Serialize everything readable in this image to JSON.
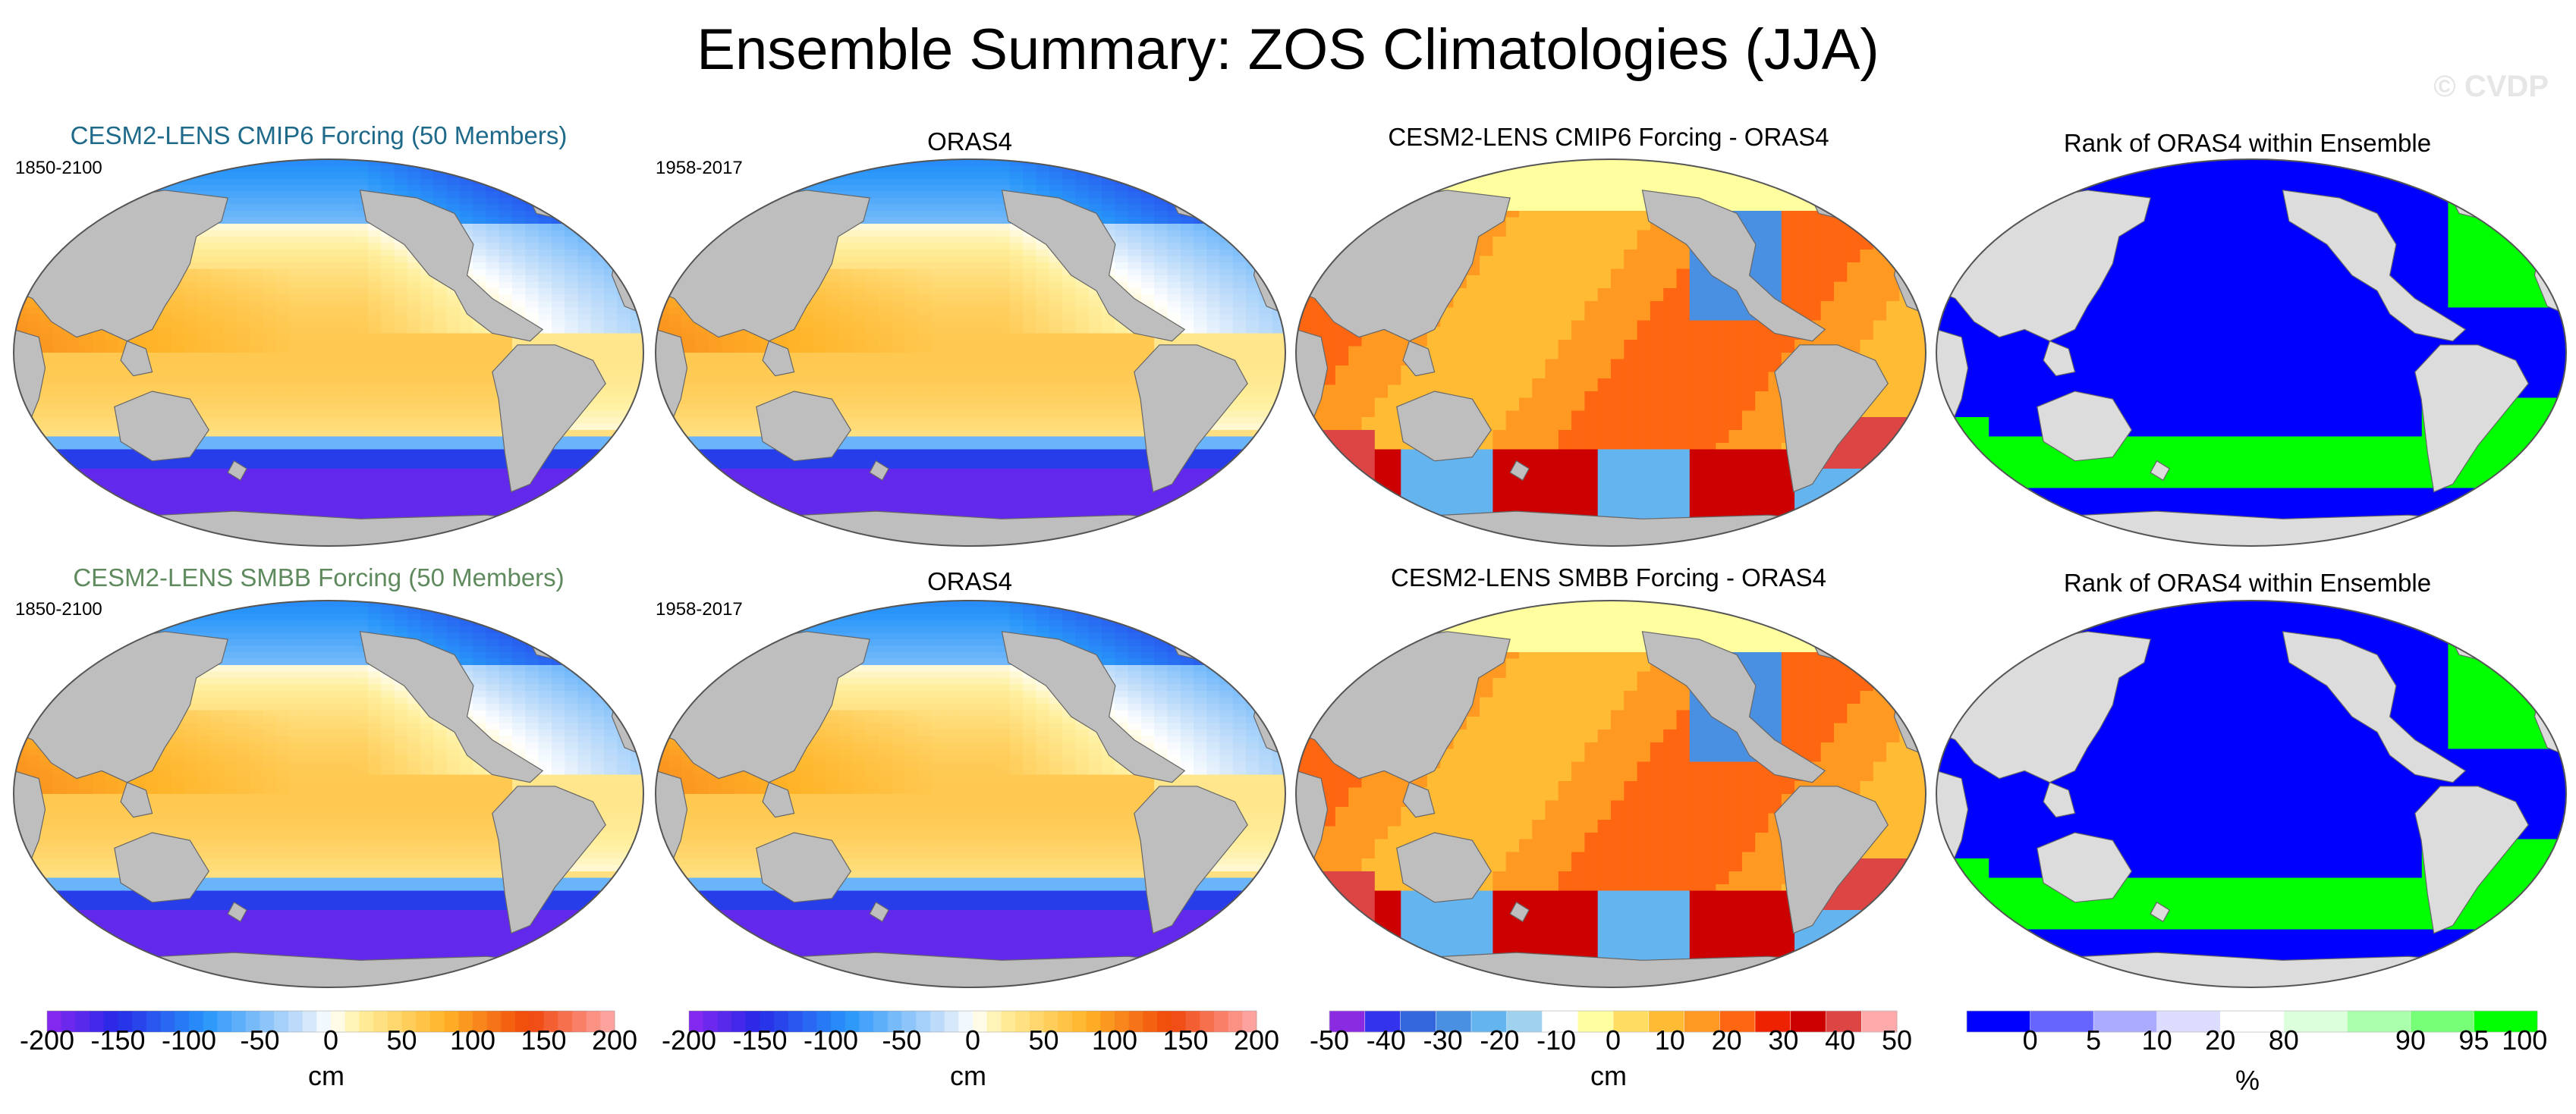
{
  "title": "Ensemble Summary: ZOS Climatologies (JJA)",
  "watermark": "© CVDP",
  "panels": [
    {
      "title": "CESM2-LENS CMIP6 Forcing (50 Members)",
      "range": "1850-2100",
      "kind": "clim",
      "title_color": "#1f6a8a"
    },
    {
      "title": "ORAS4",
      "range": "1958-2017",
      "kind": "clim",
      "title_color": "#000000"
    },
    {
      "title": "CESM2-LENS CMIP6 Forcing - ORAS4",
      "range": "",
      "kind": "diff",
      "title_color": "#000000"
    },
    {
      "title": "Rank of ORAS4 within Ensemble",
      "range": "",
      "kind": "rank",
      "title_color": "#000000"
    },
    {
      "title": "CESM2-LENS SMBB Forcing (50 Members)",
      "range": "1850-2100",
      "kind": "clim",
      "title_color": "#5e8a5e"
    },
    {
      "title": "ORAS4",
      "range": "1958-2017",
      "kind": "clim",
      "title_color": "#000000"
    },
    {
      "title": "CESM2-LENS SMBB Forcing - ORAS4",
      "range": "",
      "kind": "diff",
      "title_color": "#000000"
    },
    {
      "title": "Rank of ORAS4 within Ensemble",
      "range": "",
      "kind": "rank",
      "title_color": "#000000"
    }
  ],
  "colorbars": [
    {
      "unit": "cm",
      "ticks": [
        "-200",
        "-150",
        "-100",
        "-50",
        "0",
        "50",
        "100",
        "150",
        "200"
      ],
      "kind": "clim"
    },
    {
      "unit": "cm",
      "ticks": [
        "-200",
        "-150",
        "-100",
        "-50",
        "0",
        "50",
        "100",
        "150",
        "200"
      ],
      "kind": "clim"
    },
    {
      "unit": "cm",
      "ticks": [
        "-50",
        "-40",
        "-30",
        "-20",
        "-10",
        "0",
        "10",
        "20",
        "30",
        "40",
        "50"
      ],
      "kind": "diff"
    },
    {
      "unit": "%",
      "ticks": [
        "0",
        "5",
        "10",
        "20",
        "80",
        "90",
        "95",
        "100"
      ],
      "kind": "rank"
    }
  ],
  "chart_data": {
    "type": "heatmap",
    "title": "Ensemble Summary: ZOS Climatologies (JJA)",
    "variable": "ZOS",
    "season": "JJA",
    "units": {
      "clim": "cm",
      "diff": "cm",
      "rank": "%"
    },
    "color_ranges": {
      "clim": [
        -200,
        200
      ],
      "diff": [
        -50,
        50
      ],
      "rank": [
        0,
        100
      ]
    },
    "colors": {
      "land_clim": "#bebebe",
      "land_rank": "#dcdcdc",
      "rank_low": "#0000ff",
      "rank_high": "#00ff00",
      "map_outline": "#555555"
    }
  }
}
